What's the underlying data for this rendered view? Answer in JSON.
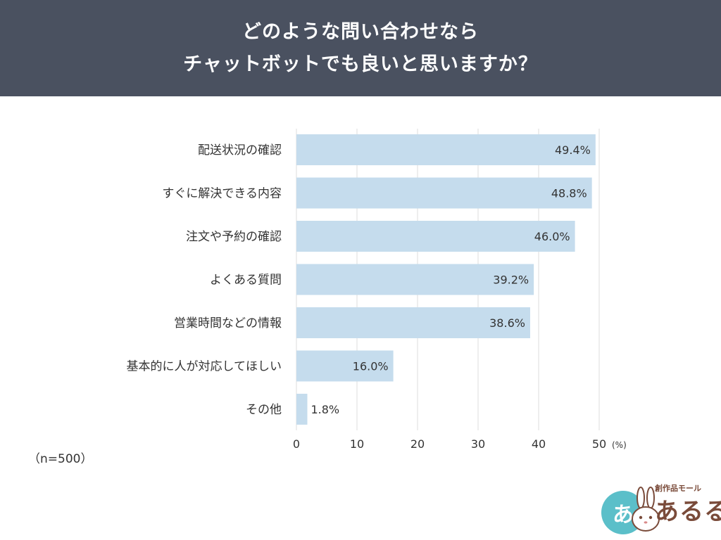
{
  "header": {
    "title_line1": "どのような問い合わせなら",
    "title_line2": "チャットボットでも良いと思いますか？"
  },
  "sample_note": "（n=500）",
  "logo": {
    "circle_text": "あ",
    "sub_text": "創作品モール",
    "main_text": "あるる"
  },
  "chart_data": {
    "type": "bar",
    "orientation": "horizontal",
    "title": "どのような問い合わせならチャットボットでも良いと思いますか？",
    "categories": [
      "配送状況の確認",
      "すぐに解決できる内容",
      "注文や予約の確認",
      "よくある質問",
      "営業時間などの情報",
      "基本的に人が対応してほしい",
      "その他"
    ],
    "values": [
      49.4,
      48.8,
      46.0,
      39.2,
      38.6,
      16.0,
      1.8
    ],
    "value_labels": [
      "49.4%",
      "48.8%",
      "46.0%",
      "39.2%",
      "38.6%",
      "16.0%",
      "1.8%"
    ],
    "xlim": [
      0,
      50
    ],
    "xticks": [
      "0",
      "10",
      "20",
      "30",
      "40",
      "50"
    ],
    "xunit": "(%)",
    "bar_color": "#c5dced",
    "grid": true
  }
}
